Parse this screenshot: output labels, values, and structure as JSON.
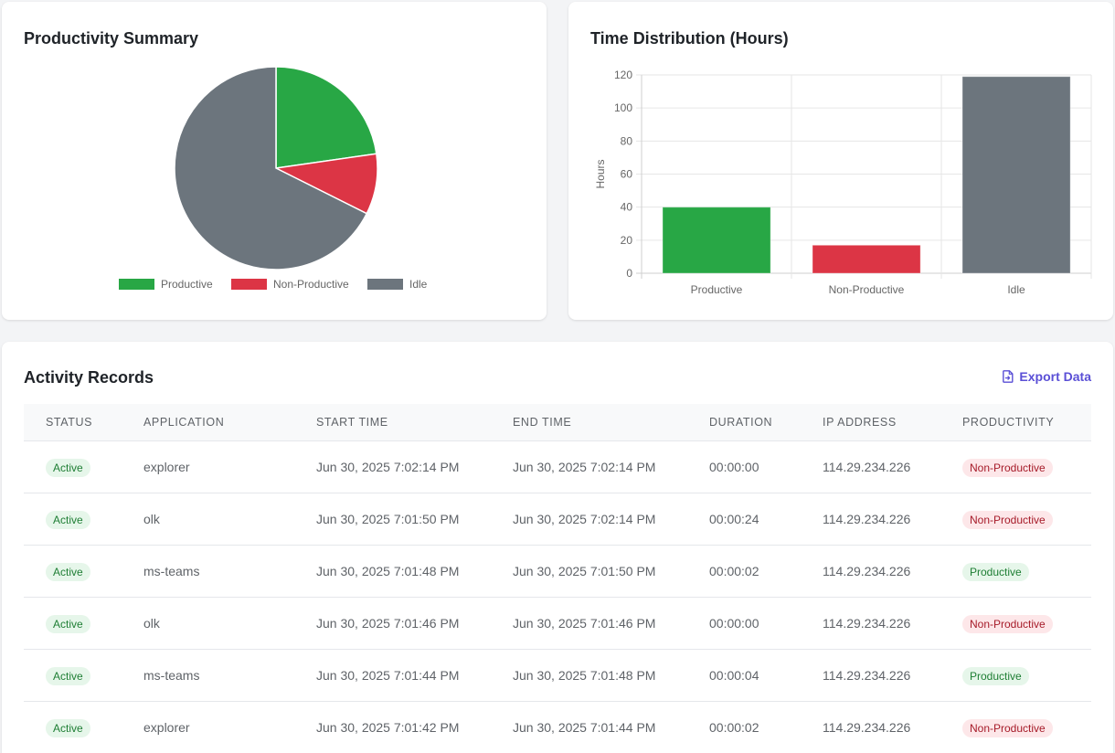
{
  "productivity_summary": {
    "title": "Productivity Summary",
    "chart_data": {
      "type": "pie",
      "categories": [
        "Productive",
        "Non-Productive",
        "Idle"
      ],
      "values": [
        40,
        17,
        119
      ],
      "colors": [
        "#28a745",
        "#dc3545",
        "#6c757d"
      ],
      "legend_position": "bottom"
    }
  },
  "time_distribution": {
    "title": "Time Distribution (Hours)",
    "chart_data": {
      "type": "bar",
      "categories": [
        "Productive",
        "Non-Productive",
        "Idle"
      ],
      "values": [
        40,
        17,
        119
      ],
      "colors": [
        "#28a745",
        "#dc3545",
        "#6c757d"
      ],
      "ylabel": "Hours",
      "ylim": [
        0,
        120
      ],
      "yticks": [
        0,
        20,
        40,
        60,
        80,
        100,
        120
      ],
      "grid": true
    }
  },
  "activity": {
    "title": "Activity Records",
    "export_label": "Export Data",
    "export_icon": "file-export-icon",
    "columns": [
      "STATUS",
      "APPLICATION",
      "START TIME",
      "END TIME",
      "DURATION",
      "IP ADDRESS",
      "PRODUCTIVITY"
    ],
    "rows": [
      {
        "status": "Active",
        "application": "explorer",
        "start": "Jun 30, 2025 7:02:14 PM",
        "end": "Jun 30, 2025 7:02:14 PM",
        "duration": "00:00:00",
        "ip": "114.29.234.226",
        "productivity": "Non-Productive"
      },
      {
        "status": "Active",
        "application": "olk",
        "start": "Jun 30, 2025 7:01:50 PM",
        "end": "Jun 30, 2025 7:02:14 PM",
        "duration": "00:00:24",
        "ip": "114.29.234.226",
        "productivity": "Non-Productive"
      },
      {
        "status": "Active",
        "application": "ms-teams",
        "start": "Jun 30, 2025 7:01:48 PM",
        "end": "Jun 30, 2025 7:01:50 PM",
        "duration": "00:00:02",
        "ip": "114.29.234.226",
        "productivity": "Productive"
      },
      {
        "status": "Active",
        "application": "olk",
        "start": "Jun 30, 2025 7:01:46 PM",
        "end": "Jun 30, 2025 7:01:46 PM",
        "duration": "00:00:00",
        "ip": "114.29.234.226",
        "productivity": "Non-Productive"
      },
      {
        "status": "Active",
        "application": "ms-teams",
        "start": "Jun 30, 2025 7:01:44 PM",
        "end": "Jun 30, 2025 7:01:48 PM",
        "duration": "00:00:04",
        "ip": "114.29.234.226",
        "productivity": "Productive"
      },
      {
        "status": "Active",
        "application": "explorer",
        "start": "Jun 30, 2025 7:01:42 PM",
        "end": "Jun 30, 2025 7:01:44 PM",
        "duration": "00:00:02",
        "ip": "114.29.234.226",
        "productivity": "Non-Productive"
      }
    ]
  }
}
